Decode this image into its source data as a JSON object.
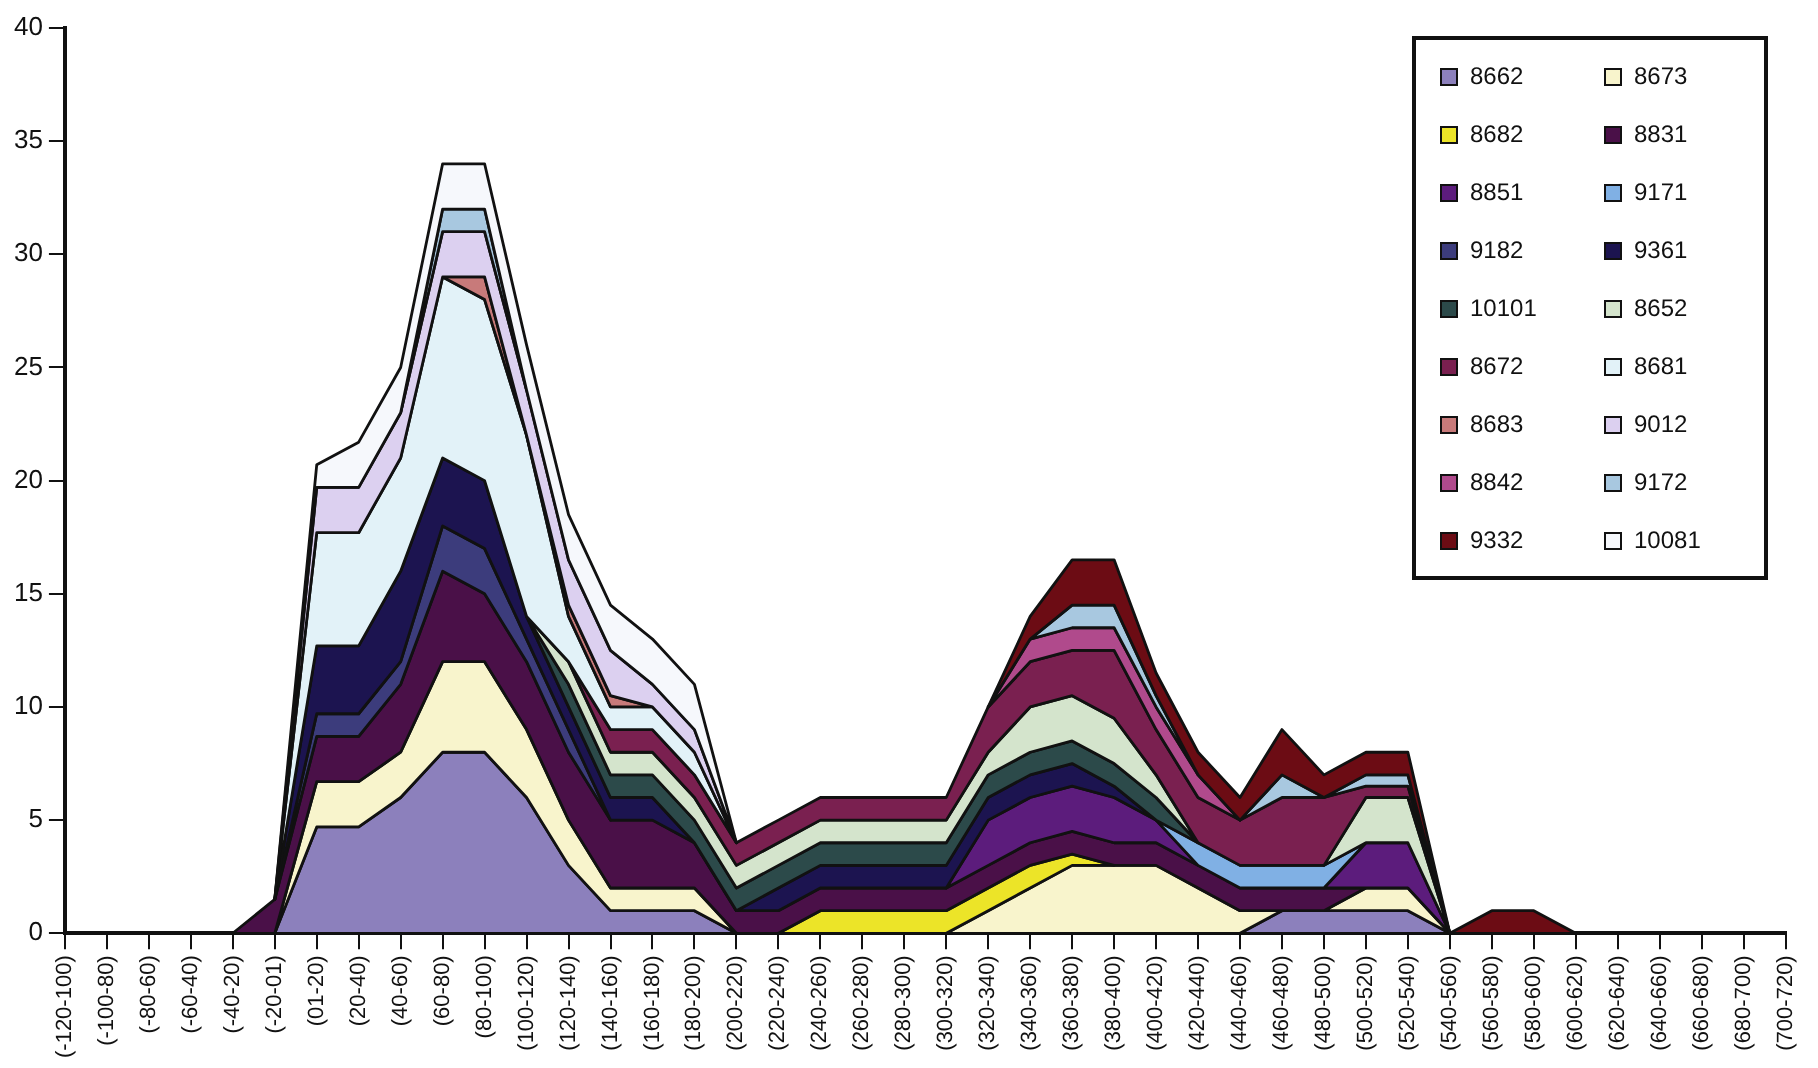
{
  "chart_data": {
    "type": "area",
    "stacked": true,
    "grid": false,
    "legend": "top right",
    "marker": "none",
    "categories": [
      "(-120-100)",
      "(-100-80)",
      "(-80-60)",
      "(-60-40)",
      "(-40-20)",
      "(-20-01)",
      "(01-20)",
      "(20-40)",
      "(40-60)",
      "(60-80)",
      "(80-100)",
      "(100-120)",
      "(120-140)",
      "(140-160)",
      "(160-180)",
      "(180-200)",
      "(200-220)",
      "(220-240)",
      "(240-260)",
      "(260-280)",
      "(280-300)",
      "(300-320)",
      "(320-340)",
      "(340-360)",
      "(360-380)",
      "(380-400)",
      "(400-420)",
      "(420-440)",
      "(440-460)",
      "(460-480)",
      "(480-500)",
      "(500-520)",
      "(520-540)",
      "(540-560)",
      "(560-580)",
      "(580-600)",
      "(600-620)",
      "(620-640)",
      "(640-660)",
      "(660-680)",
      "(680-700)",
      "(700-720)"
    ],
    "ylim": [
      0,
      40
    ],
    "yticks": [
      0,
      5,
      10,
      15,
      20,
      25,
      30,
      35,
      40
    ],
    "series": [
      {
        "name": "8662",
        "color": "#8c80bc",
        "values": [
          null,
          null,
          null,
          null,
          null,
          0,
          4.7,
          4.7,
          6,
          8,
          8,
          6,
          3,
          1,
          1,
          1,
          0,
          null,
          null,
          null,
          null,
          null,
          null,
          null,
          null,
          null,
          null,
          null,
          0,
          1,
          1,
          1,
          1,
          0,
          null,
          null,
          null,
          null,
          null,
          null,
          null,
          null
        ]
      },
      {
        "name": "8673",
        "color": "#f8f4cc",
        "values": [
          null,
          null,
          null,
          null,
          null,
          0,
          2,
          2,
          2,
          4,
          4,
          3,
          2,
          1,
          1,
          1,
          0,
          null,
          null,
          null,
          null,
          0,
          1,
          2,
          3,
          3,
          3,
          2,
          1,
          0,
          0,
          1,
          1,
          0,
          null,
          null,
          null,
          null,
          null,
          null,
          null,
          null
        ]
      },
      {
        "name": "8682",
        "color": "#ece428",
        "values": [
          null,
          null,
          null,
          null,
          null,
          null,
          null,
          null,
          null,
          null,
          null,
          null,
          null,
          null,
          null,
          null,
          null,
          0,
          1,
          1,
          1,
          1,
          1,
          1,
          0.5,
          0,
          null,
          null,
          null,
          null,
          null,
          null,
          null,
          null,
          null,
          null,
          null,
          null,
          null,
          null,
          null,
          null
        ]
      },
      {
        "name": "8831",
        "color": "#4a1048",
        "values": [
          null,
          null,
          null,
          null,
          0,
          1.5,
          2,
          2,
          3,
          4,
          3,
          3,
          3,
          3,
          3,
          2,
          1,
          1,
          1,
          1,
          1,
          1,
          1,
          1,
          1,
          1,
          1,
          1,
          1,
          1,
          1,
          0,
          null,
          null,
          null,
          null,
          null,
          null,
          null,
          null,
          null,
          null
        ]
      },
      {
        "name": "8851",
        "color": "#5c1c7c",
        "values": [
          null,
          null,
          null,
          null,
          null,
          null,
          null,
          null,
          null,
          null,
          null,
          null,
          null,
          null,
          null,
          null,
          null,
          null,
          null,
          null,
          null,
          0,
          2,
          2,
          2,
          2,
          1,
          0,
          null,
          null,
          0,
          2,
          2,
          0,
          null,
          null,
          null,
          null,
          null,
          null,
          null,
          null
        ]
      },
      {
        "name": "9171",
        "color": "#80b0e4",
        "values": [
          null,
          null,
          null,
          null,
          null,
          null,
          null,
          null,
          null,
          null,
          null,
          null,
          null,
          null,
          null,
          null,
          null,
          null,
          null,
          null,
          null,
          null,
          null,
          null,
          null,
          null,
          0,
          1,
          1,
          1,
          1,
          0,
          null,
          null,
          null,
          null,
          null,
          null,
          null,
          null,
          null,
          null
        ]
      },
      {
        "name": "9182",
        "color": "#3c3c7c",
        "values": [
          null,
          null,
          null,
          null,
          null,
          0,
          1,
          1,
          1,
          2,
          2,
          1,
          1,
          0,
          null,
          null,
          null,
          null,
          null,
          null,
          null,
          null,
          null,
          null,
          null,
          null,
          null,
          null,
          null,
          null,
          null,
          null,
          null,
          null,
          null,
          null,
          null,
          null,
          null,
          null,
          null,
          null
        ]
      },
      {
        "name": "9361",
        "color": "#1c1450",
        "values": [
          null,
          null,
          null,
          null,
          null,
          0,
          3,
          3,
          4,
          3,
          3,
          1,
          1,
          1,
          1,
          0,
          0,
          1,
          1,
          1,
          1,
          1,
          1,
          1,
          1,
          0.5,
          0,
          null,
          null,
          null,
          null,
          null,
          null,
          null,
          null,
          null,
          null,
          null,
          null,
          null,
          null,
          null
        ]
      },
      {
        "name": "10101",
        "color": "#2c4a4a",
        "values": [
          null,
          null,
          null,
          null,
          null,
          null,
          null,
          null,
          null,
          null,
          null,
          0,
          1,
          1,
          1,
          1,
          1,
          1,
          1,
          1,
          1,
          1,
          1,
          1,
          1,
          1,
          1,
          0,
          null,
          null,
          null,
          null,
          null,
          null,
          null,
          null,
          null,
          null,
          null,
          null,
          null,
          null
        ]
      },
      {
        "name": "8652",
        "color": "#d4e4cc",
        "values": [
          null,
          null,
          null,
          null,
          null,
          null,
          null,
          null,
          null,
          null,
          null,
          0,
          1,
          1,
          1,
          1,
          1,
          1,
          1,
          1,
          1,
          1,
          1,
          2,
          2,
          2,
          1,
          0,
          null,
          null,
          0,
          2,
          2,
          0,
          null,
          null,
          null,
          null,
          null,
          null,
          null,
          null
        ]
      },
      {
        "name": "8672",
        "color": "#7a2050",
        "values": [
          null,
          null,
          null,
          null,
          null,
          null,
          null,
          null,
          null,
          null,
          null,
          null,
          0,
          1,
          1,
          1,
          1,
          1,
          1,
          1,
          1,
          1,
          2,
          2,
          2,
          3,
          2,
          2,
          2,
          3,
          3,
          0.5,
          0.5,
          0,
          null,
          null,
          null,
          null,
          null,
          null,
          null,
          null
        ]
      },
      {
        "name": "8681",
        "color": "#e2f2f8",
        "values": [
          null,
          null,
          null,
          null,
          null,
          0,
          5,
          5,
          5,
          8,
          8,
          8,
          2,
          1,
          1,
          1,
          0,
          null,
          null,
          null,
          null,
          null,
          null,
          null,
          null,
          null,
          null,
          null,
          null,
          null,
          null,
          null,
          null,
          null,
          null,
          null,
          null,
          null,
          null,
          null,
          null,
          null
        ]
      },
      {
        "name": "8683",
        "color": "#c87a7a",
        "values": [
          null,
          null,
          null,
          null,
          null,
          null,
          null,
          null,
          null,
          0,
          1,
          0,
          0.5,
          0.5,
          0,
          null,
          null,
          null,
          null,
          null,
          null,
          null,
          null,
          null,
          null,
          null,
          null,
          null,
          null,
          null,
          null,
          null,
          null,
          null,
          null,
          null,
          null,
          null,
          null,
          null,
          null,
          null
        ]
      },
      {
        "name": "9012",
        "color": "#dcd0f0",
        "values": [
          null,
          null,
          null,
          null,
          null,
          0,
          2,
          2,
          2,
          2,
          2,
          2,
          2,
          2,
          1,
          1,
          0,
          null,
          null,
          null,
          null,
          null,
          null,
          null,
          null,
          null,
          null,
          null,
          null,
          null,
          null,
          null,
          null,
          null,
          null,
          null,
          null,
          null,
          null,
          null,
          null,
          null
        ]
      },
      {
        "name": "8842",
        "color": "#b04a8c",
        "values": [
          null,
          null,
          null,
          null,
          null,
          null,
          null,
          null,
          null,
          null,
          null,
          null,
          null,
          null,
          null,
          null,
          null,
          null,
          null,
          null,
          null,
          null,
          0,
          1,
          1,
          1,
          1,
          1,
          0,
          null,
          null,
          null,
          null,
          null,
          null,
          null,
          null,
          null,
          null,
          null,
          null,
          null
        ]
      },
      {
        "name": "9172",
        "color": "#a8c8e0",
        "values": [
          null,
          null,
          null,
          null,
          null,
          null,
          null,
          null,
          0,
          1,
          1,
          0,
          null,
          null,
          null,
          null,
          null,
          null,
          null,
          null,
          null,
          null,
          null,
          0,
          1,
          1,
          0.5,
          0,
          0,
          1,
          0,
          0.5,
          0.5,
          0,
          null,
          null,
          null,
          null,
          null,
          null,
          null,
          null
        ]
      },
      {
        "name": "9332",
        "color": "#6c0c14",
        "values": [
          null,
          null,
          null,
          null,
          null,
          null,
          null,
          null,
          null,
          null,
          null,
          null,
          null,
          null,
          null,
          null,
          null,
          null,
          null,
          null,
          null,
          null,
          0,
          1,
          2,
          2,
          1,
          1,
          1,
          2,
          1,
          1,
          1,
          0,
          1,
          1,
          0,
          null,
          null,
          null,
          null,
          null
        ]
      },
      {
        "name": "10081",
        "color": "#f6f8fc",
        "values": [
          null,
          null,
          null,
          null,
          null,
          0,
          1,
          2,
          2,
          2,
          2,
          2,
          2,
          2,
          2,
          2,
          0,
          null,
          null,
          null,
          null,
          null,
          null,
          null,
          null,
          null,
          null,
          null,
          null,
          null,
          null,
          null,
          null,
          null,
          null,
          null,
          null,
          null,
          null,
          null,
          null,
          null
        ]
      }
    ]
  }
}
